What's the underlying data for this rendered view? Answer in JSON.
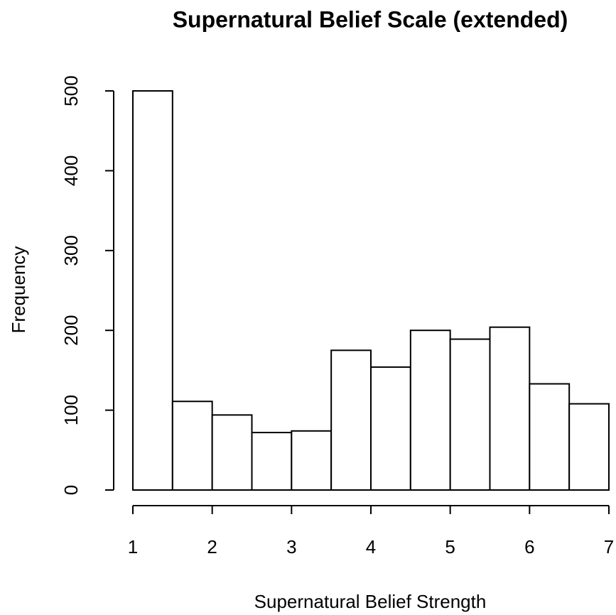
{
  "chart_data": {
    "type": "histogram",
    "title": "Supernatural Belief Scale (extended)",
    "xlabel": "Supernatural Belief Strength",
    "ylabel": "Frequency",
    "bins": [
      1,
      1.5,
      2,
      2.5,
      3,
      3.5,
      4,
      4.5,
      5,
      5.5,
      6,
      6.5,
      7
    ],
    "values": [
      500,
      111,
      94,
      72,
      74,
      175,
      154,
      200,
      189,
      204,
      133,
      108
    ],
    "color": "#ffffff",
    "xlim": [
      1,
      7
    ],
    "xticks": [
      1,
      2,
      3,
      4,
      5,
      6,
      7
    ],
    "ylim": [
      0,
      500
    ],
    "yticks": [
      0,
      100,
      200,
      300,
      400,
      500
    ]
  }
}
